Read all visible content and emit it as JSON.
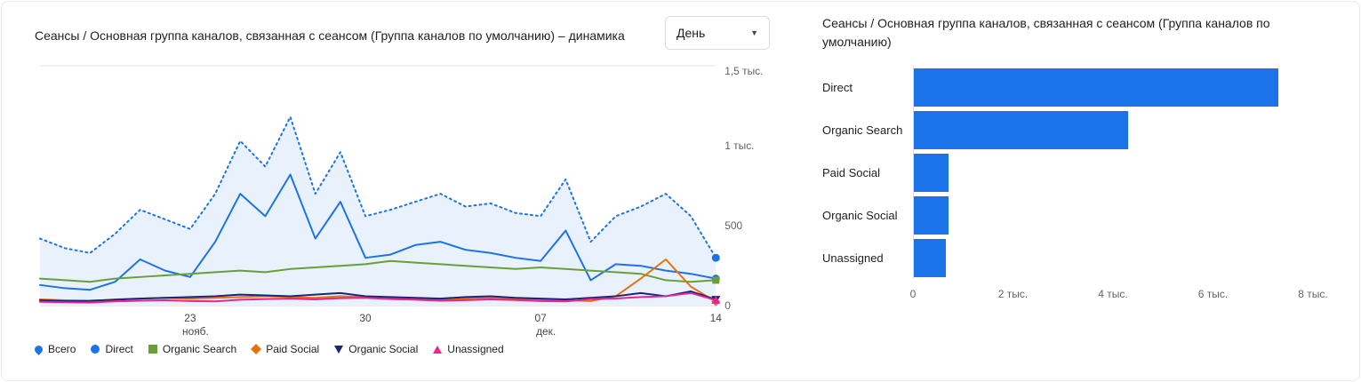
{
  "colors": {
    "blue": "#1a73e8",
    "green": "#689f38",
    "orange": "#e8710a",
    "navy": "#1a237e",
    "magenta": "#e52592",
    "area_fill": "#e9f1fc",
    "grid": "#e0e0e0",
    "axis_text": "#5f6368"
  },
  "left_chart": {
    "title": "Сеансы / Основная группа каналов, связанная с сеансом (Группа каналов по умолчанию) – динамика",
    "period_selector": {
      "value": "День"
    },
    "y_ticks": [
      {
        "label": "1,5 тыс.",
        "value": 1500
      },
      {
        "label": "1 тыс.",
        "value": 1000
      },
      {
        "label": "500",
        "value": 500
      },
      {
        "label": "0",
        "value": 0
      }
    ],
    "x_ticks": [
      {
        "label": "23",
        "sub": "нояб.",
        "index": 6
      },
      {
        "label": "30",
        "sub": "",
        "index": 13
      },
      {
        "label": "07",
        "sub": "дек.",
        "index": 20
      },
      {
        "label": "14",
        "sub": "",
        "index": 27
      }
    ],
    "legend": [
      {
        "label": "Всего",
        "color": "#1a73e8",
        "shape": "pin"
      },
      {
        "label": "Direct",
        "color": "#1a73e8",
        "shape": "circle"
      },
      {
        "label": "Organic Search",
        "color": "#689f38",
        "shape": "square"
      },
      {
        "label": "Paid Social",
        "color": "#e8710a",
        "shape": "diamond"
      },
      {
        "label": "Organic Social",
        "color": "#1a237e",
        "shape": "triangle-down"
      },
      {
        "label": "Unassigned",
        "color": "#e52592",
        "shape": "triangle-up"
      }
    ],
    "chart_data": {
      "type": "line",
      "x": [
        "17",
        "18",
        "19",
        "20",
        "21",
        "22",
        "23",
        "24",
        "25",
        "26",
        "27",
        "28",
        "29",
        "30",
        "01",
        "02",
        "03",
        "04",
        "05",
        "06",
        "07",
        "08",
        "09",
        "10",
        "11",
        "12",
        "13",
        "14"
      ],
      "ylim": [
        0,
        1500
      ],
      "series": [
        {
          "name": "Всего",
          "color": "#1a73e8",
          "shape": "pin",
          "dashed": true,
          "area": true,
          "values": [
            420,
            360,
            330,
            450,
            600,
            540,
            480,
            700,
            1030,
            870,
            1180,
            700,
            960,
            560,
            600,
            650,
            700,
            620,
            640,
            580,
            560,
            790,
            400,
            560,
            620,
            700,
            560,
            300
          ]
        },
        {
          "name": "Direct",
          "color": "#1a73e8",
          "shape": "circle",
          "dashed": false,
          "area": false,
          "values": [
            130,
            110,
            100,
            150,
            290,
            220,
            180,
            400,
            700,
            560,
            820,
            420,
            650,
            300,
            320,
            380,
            400,
            350,
            330,
            300,
            280,
            470,
            160,
            260,
            250,
            220,
            200,
            170
          ]
        },
        {
          "name": "Organic Search",
          "color": "#689f38",
          "shape": "square",
          "dashed": false,
          "area": false,
          "values": [
            170,
            160,
            150,
            170,
            180,
            190,
            200,
            210,
            220,
            210,
            230,
            240,
            250,
            260,
            280,
            270,
            260,
            250,
            240,
            230,
            240,
            230,
            220,
            210,
            200,
            160,
            150,
            160
          ]
        },
        {
          "name": "Paid Social",
          "color": "#e8710a",
          "shape": "diamond",
          "dashed": false,
          "area": false,
          "values": [
            40,
            35,
            30,
            40,
            45,
            50,
            45,
            50,
            55,
            60,
            55,
            50,
            60,
            55,
            50,
            45,
            40,
            45,
            50,
            45,
            40,
            35,
            30,
            60,
            170,
            290,
            120,
            25
          ]
        },
        {
          "name": "Organic Social",
          "color": "#1a237e",
          "shape": "triangle-down",
          "dashed": false,
          "area": false,
          "values": [
            35,
            30,
            32,
            38,
            45,
            50,
            55,
            60,
            70,
            65,
            60,
            70,
            80,
            60,
            55,
            50,
            45,
            55,
            60,
            50,
            45,
            40,
            50,
            60,
            80,
            60,
            90,
            40
          ]
        },
        {
          "name": "Unassigned",
          "color": "#e52592",
          "shape": "triangle-up",
          "dashed": false,
          "area": false,
          "values": [
            25,
            22,
            20,
            28,
            32,
            35,
            30,
            28,
            38,
            42,
            45,
            40,
            48,
            50,
            42,
            38,
            32,
            35,
            40,
            36,
            30,
            28,
            42,
            46,
            55,
            60,
            80,
            35
          ]
        }
      ]
    }
  },
  "right_chart": {
    "title": "Сеансы / Основная группа каналов, связанная с сеансом (Группа каналов по умолчанию)",
    "chart_data": {
      "type": "bar",
      "orientation": "horizontal",
      "categories": [
        "Direct",
        "Organic Search",
        "Paid Social",
        "Organic Social",
        "Unassigned"
      ],
      "values": [
        7300,
        4300,
        700,
        700,
        650
      ],
      "xlim": [
        0,
        8000
      ],
      "x_ticks": [
        "0",
        "2 тыс.",
        "4 тыс.",
        "6 тыс.",
        "8 тыс."
      ]
    }
  }
}
